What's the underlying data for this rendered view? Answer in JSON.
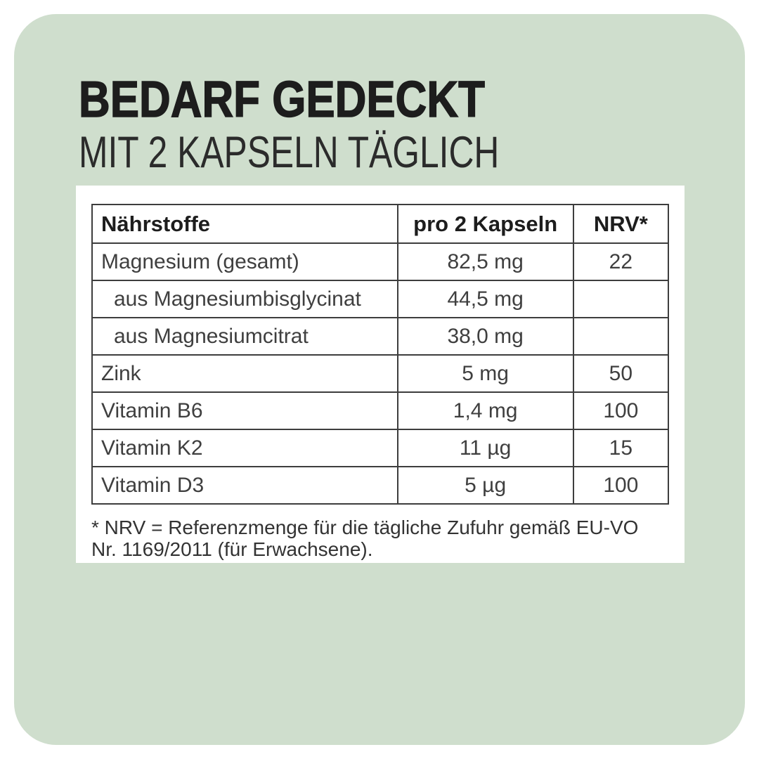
{
  "page": {
    "background_color": "#ffffff",
    "panel_color": "#cfdecd",
    "border_color": "#3d3d3d"
  },
  "header": {
    "title": "BEDARF GEDECKT",
    "subtitle": "MIT 2 KAPSELN TÄGLICH"
  },
  "table": {
    "columns": {
      "nutrient": "Nährstoffe",
      "amount": "pro 2 Kapseln",
      "nrv": "NRV*"
    },
    "rows": [
      {
        "name": "Magnesium (gesamt)",
        "amount": "82,5 mg",
        "nrv": "22"
      },
      {
        "name": "aus Magnesiumbisglycinat",
        "amount": "44,5 mg",
        "nrv": ""
      },
      {
        "name": "aus Magnesiumcitrat",
        "amount": "38,0 mg",
        "nrv": ""
      },
      {
        "name": "Zink",
        "amount": "5 mg",
        "nrv": "50"
      },
      {
        "name": "Vitamin B6",
        "amount": "1,4 mg",
        "nrv": "100"
      },
      {
        "name": "Vitamin K2",
        "amount": "11 µg",
        "nrv": "15"
      },
      {
        "name": "Vitamin D3",
        "amount": "5 µg",
        "nrv": "100"
      }
    ],
    "footnote_line1": "* NRV = Referenzmenge für die tägliche Zufuhr gemäß EU-VO",
    "footnote_line2": "Nr. 1169/2011 (für Erwachsene)."
  }
}
